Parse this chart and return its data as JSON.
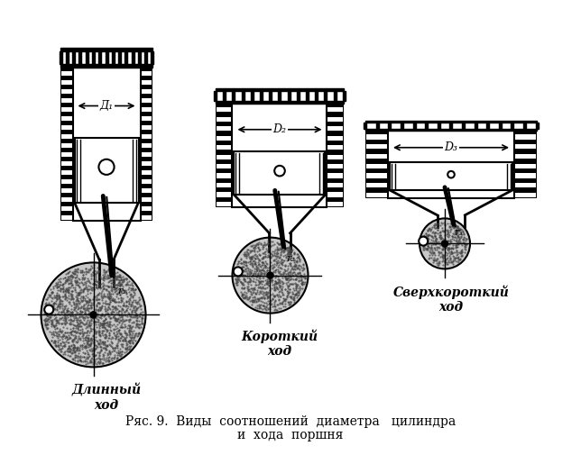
{
  "title_line1": "Ряс. 9.  Виды  соотношений  диаметра   цилиндра",
  "title_line2": "и  хода  поршня",
  "label1": "Длинный\nход",
  "label2": "Короткий\nход",
  "label3": "Сверхкороткий\nход",
  "border_color": "#9ecb00",
  "bg_color": "#ffffff"
}
